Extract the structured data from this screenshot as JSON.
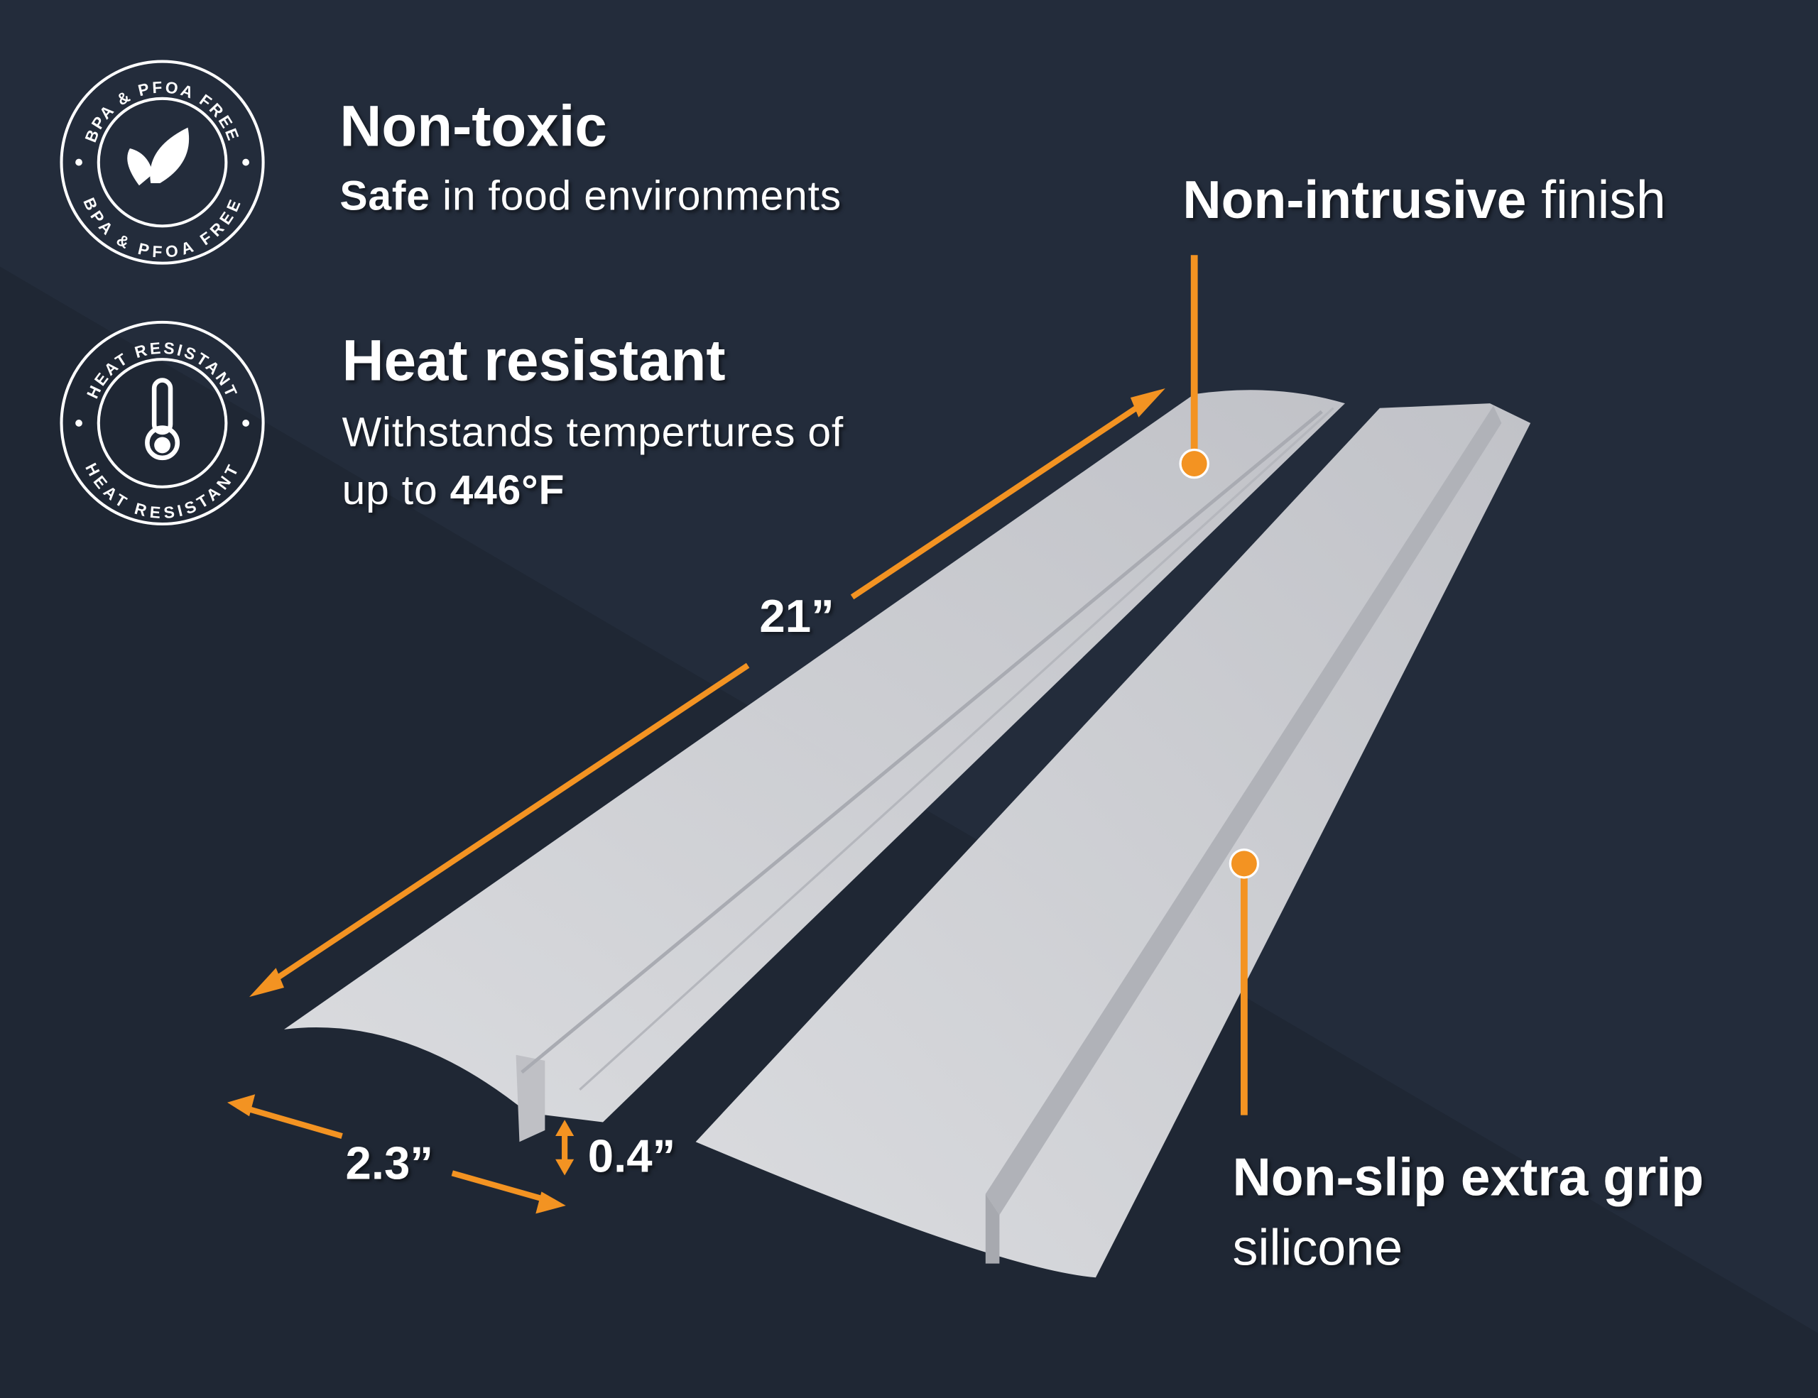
{
  "colors": {
    "background": "#232c3b",
    "accent": "#f39322",
    "strip": "#d7d8dc",
    "text": "#ffffff"
  },
  "badges": [
    {
      "text_top": "BPA & PFOA FREE",
      "text_bottom": "BPA & PFOA FREE",
      "icon": "leaf-icon"
    },
    {
      "text_top": "HEAT RESISTANT",
      "text_bottom": "HEAT RESISTANT",
      "icon": "thermometer-icon"
    }
  ],
  "features": {
    "non_toxic": {
      "title": "Non-toxic",
      "sub_bold": "Safe",
      "sub_rest": " in food environments"
    },
    "heat": {
      "title": "Heat resistant",
      "line1": "Withstands tempertures of",
      "line2_prefix": "up to ",
      "line2_bold": "446°F"
    },
    "finish": {
      "bold": "Non-intrusive",
      "rest": " finish"
    },
    "grip": {
      "bold": "Non-slip extra grip",
      "line2": "silicone"
    }
  },
  "dimensions": {
    "length": "21”",
    "width": "2.3”",
    "height": "0.4”"
  }
}
